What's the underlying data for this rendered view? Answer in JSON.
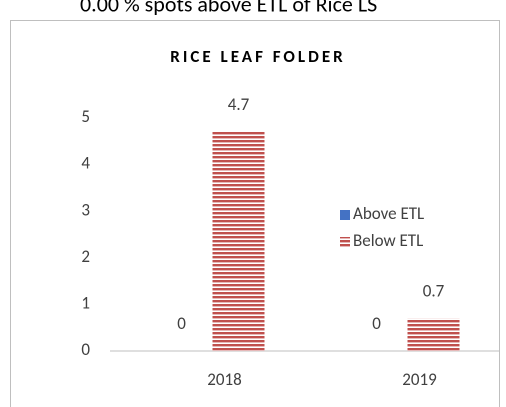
{
  "caption": "0.00 % spots above ETL of Rice LS",
  "chart_data": {
    "type": "bar",
    "title": "RICE LEAF FOLDER",
    "categories": [
      "2018",
      "2019"
    ],
    "series": [
      {
        "name": "Above ETL",
        "color": "#4472c4",
        "values": [
          0,
          0
        ]
      },
      {
        "name": "Below ETL",
        "color": "#c0504d",
        "values": [
          4.7,
          0.7
        ]
      }
    ],
    "ylim": [
      0,
      5
    ],
    "yticks": [
      0,
      1,
      2,
      3,
      4,
      5
    ],
    "grid": false,
    "legend": "right"
  }
}
